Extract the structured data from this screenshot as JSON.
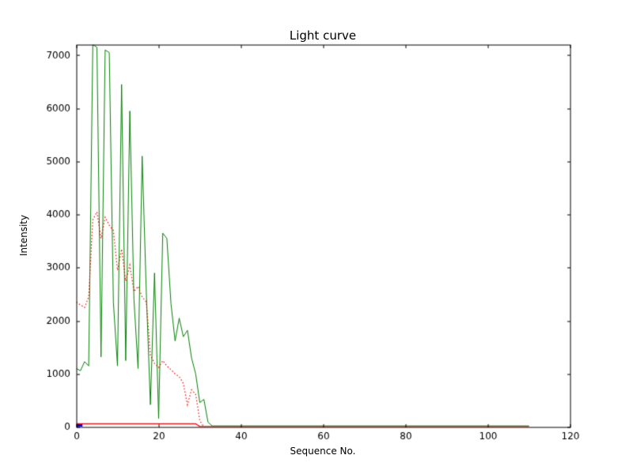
{
  "chart_data": {
    "type": "line",
    "title": "Light curve",
    "xlabel": "Sequence No.",
    "ylabel": "Intensity",
    "xlim": [
      0,
      120
    ],
    "ylim": [
      0,
      7200
    ],
    "xticks": [
      0,
      20,
      40,
      60,
      80,
      100,
      120
    ],
    "yticks": [
      0,
      1000,
      2000,
      3000,
      4000,
      5000,
      6000,
      7000
    ],
    "grid": false,
    "legend": "none",
    "series": [
      {
        "name": "raw-intensity-line",
        "color": "#008000",
        "style": "solid",
        "width": 1,
        "x": [
          0,
          1,
          2,
          3,
          4,
          5,
          6,
          7,
          8,
          9,
          10,
          11,
          12,
          13,
          14,
          15,
          16,
          17,
          18,
          19,
          20,
          21,
          22,
          23,
          24,
          25,
          26,
          27,
          28,
          29,
          30,
          31,
          32,
          33,
          110
        ],
        "y": [
          1100,
          1060,
          1230,
          1150,
          7200,
          7150,
          1320,
          7100,
          7050,
          2350,
          1150,
          6450,
          1250,
          5950,
          2400,
          1100,
          5100,
          2550,
          420,
          2900,
          160,
          3650,
          3550,
          2320,
          1620,
          2050,
          1700,
          1820,
          1300,
          1000,
          460,
          520,
          90,
          20,
          20
        ]
      },
      {
        "name": "smoothed-intensity-dotted-line",
        "color": "#ff0000",
        "style": "dotted",
        "width": 1.2,
        "x": [
          0,
          1,
          2,
          3,
          4,
          5,
          6,
          7,
          8,
          9,
          10,
          11,
          12,
          13,
          14,
          15,
          16,
          17,
          18,
          19,
          20,
          21,
          22,
          23,
          24,
          25,
          26,
          27,
          28,
          29,
          30,
          31
        ],
        "y": [
          2350,
          2300,
          2250,
          2450,
          3900,
          4050,
          3550,
          3950,
          3800,
          3700,
          2950,
          3350,
          2750,
          3050,
          2550,
          2650,
          2450,
          2350,
          1350,
          1200,
          1120,
          1250,
          1150,
          1080,
          1000,
          950,
          820,
          420,
          700,
          620,
          120,
          0
        ]
      },
      {
        "name": "baseline-line",
        "color": "#ff0000",
        "style": "solid",
        "width": 1.2,
        "x": [
          0,
          29,
          30,
          110
        ],
        "y": [
          60,
          60,
          10,
          10
        ]
      },
      {
        "name": "start-marker-line",
        "color": "#0000ff",
        "style": "solid",
        "width": 3,
        "x": [
          0,
          1.5
        ],
        "y": [
          30,
          30
        ]
      }
    ]
  },
  "theme": {
    "background": "#ffffff",
    "axis_color": "#000000",
    "text_color": "#000000"
  }
}
